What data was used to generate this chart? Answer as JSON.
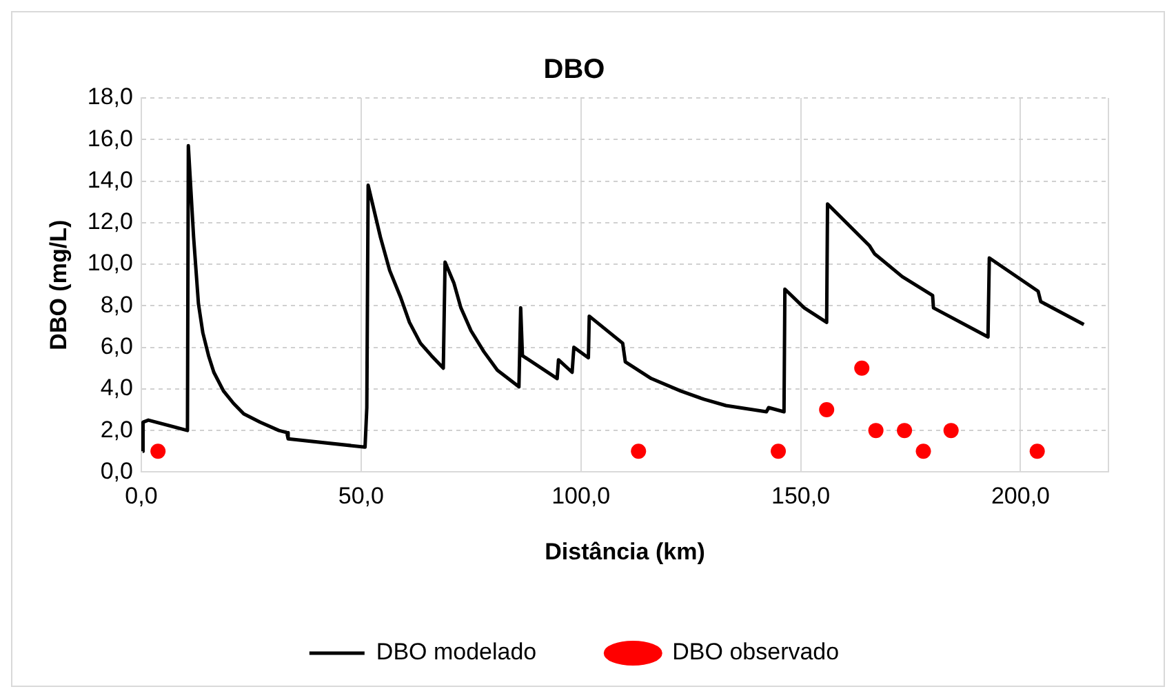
{
  "chart_data": {
    "type": "line",
    "title": "DBO",
    "xlabel": "Distância (km)",
    "ylabel": "DBO (mg/L)",
    "xlim": [
      0,
      220
    ],
    "xticks": [
      {
        "value": 0,
        "label": "0,0"
      },
      {
        "value": 50,
        "label": "50,0"
      },
      {
        "value": 100,
        "label": "100,0"
      },
      {
        "value": 150,
        "label": "150,0"
      },
      {
        "value": 200,
        "label": "200,0"
      }
    ],
    "ylim": [
      0,
      18
    ],
    "yticks": [
      {
        "value": 0,
        "label": "0,0"
      },
      {
        "value": 2,
        "label": "2,0"
      },
      {
        "value": 4,
        "label": "4,0"
      },
      {
        "value": 6,
        "label": "6,0"
      },
      {
        "value": 8,
        "label": "8,0"
      },
      {
        "value": 10,
        "label": "10,0"
      },
      {
        "value": 12,
        "label": "12,0"
      },
      {
        "value": 14,
        "label": "14,0"
      },
      {
        "value": 16,
        "label": "16,0"
      },
      {
        "value": 18,
        "label": "18,0"
      }
    ],
    "grid": true,
    "legend": "bottom",
    "series": [
      {
        "name": "DBO modelado",
        "color": "#000000",
        "marker": "none",
        "line_style": "solid",
        "x": [
          0.3,
          0.4,
          1.6,
          10.5,
          10.7,
          11.9,
          13.0,
          14.0,
          15.3,
          16.5,
          18.7,
          21.0,
          23.3,
          27.0,
          31.3,
          33.1,
          33.4,
          50.9,
          51.3,
          51.6,
          54.4,
          56.5,
          59.0,
          61.0,
          63.5,
          66.0,
          68.7,
          69.1,
          71.1,
          72.7,
          75.0,
          77.9,
          81.0,
          85.9,
          86.3,
          86.7,
          94.6,
          94.9,
          98.0,
          98.4,
          101.7,
          101.9,
          109.5,
          110.1,
          116.0,
          122.7,
          128.0,
          133.0,
          142.2,
          142.7,
          146.2,
          146.4,
          150.8,
          155.9,
          156.1,
          165.6,
          166.8,
          173.1,
          180.0,
          180.2,
          192.6,
          192.9,
          204.0,
          204.6,
          214.4
        ],
        "values": [
          1.0,
          2.4,
          2.5,
          2.0,
          15.7,
          11.3,
          8.1,
          6.7,
          5.6,
          4.8,
          3.9,
          3.3,
          2.8,
          2.4,
          2.0,
          1.9,
          1.6,
          1.2,
          3.1,
          13.8,
          11.3,
          9.7,
          8.4,
          7.2,
          6.2,
          5.6,
          5.0,
          10.1,
          9.1,
          7.9,
          6.8,
          5.8,
          4.9,
          4.1,
          7.9,
          5.6,
          4.5,
          5.4,
          4.8,
          6.0,
          5.5,
          7.5,
          6.2,
          5.3,
          4.5,
          3.9,
          3.5,
          3.2,
          2.9,
          3.1,
          2.9,
          8.8,
          7.9,
          7.2,
          12.9,
          10.9,
          10.5,
          9.4,
          8.5,
          7.9,
          6.5,
          10.3,
          8.7,
          8.2,
          7.1
        ]
      },
      {
        "name": "DBO observado",
        "type": "scatter",
        "color": "#ff0000",
        "marker": "circle",
        "x": [
          3.8,
          113.1,
          144.9,
          155.9,
          163.9,
          167.1,
          173.6,
          177.9,
          184.2,
          203.8
        ],
        "values": [
          1,
          1,
          1,
          3,
          5,
          2,
          2,
          1,
          2,
          1
        ]
      }
    ]
  }
}
